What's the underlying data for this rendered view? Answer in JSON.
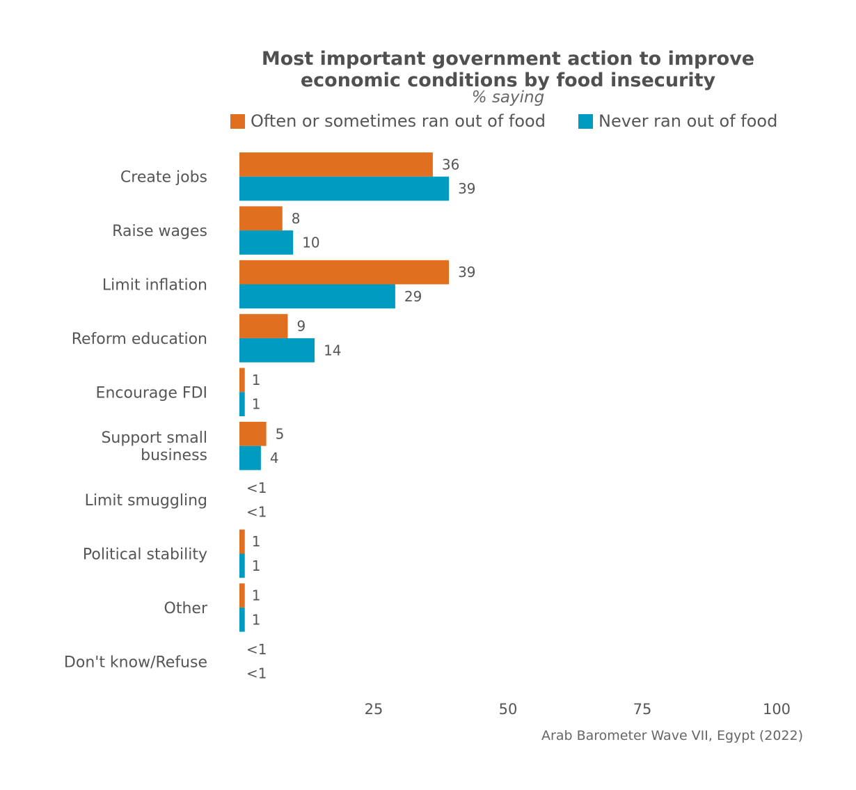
{
  "chart_data": {
    "type": "bar",
    "orientation": "horizontal",
    "title": "Most important government action to improve economic conditions by food insecurity",
    "title_lines": [
      "Most important government action to improve",
      "economic conditions by food insecurity"
    ],
    "subtitle": "% saying",
    "categories": [
      "Create jobs",
      "Raise wages",
      "Limit inflation",
      "Reform education",
      "Encourage FDI",
      "Support small business",
      "Limit smuggling",
      "Political stability",
      "Other",
      "Don't know/Refuse"
    ],
    "category_lines": [
      [
        "Create jobs"
      ],
      [
        "Raise wages"
      ],
      [
        "Limit inflation"
      ],
      [
        "Reform education"
      ],
      [
        "Encourage FDI"
      ],
      [
        "Support small",
        "business"
      ],
      [
        "Limit smuggling"
      ],
      [
        "Political stability"
      ],
      [
        "Other"
      ],
      [
        "Don't know/Refuse"
      ]
    ],
    "series": [
      {
        "name": "Often or sometimes ran out of food",
        "color": "#E06F20",
        "values": [
          36,
          8,
          39,
          9,
          1,
          5,
          0,
          1,
          1,
          0
        ],
        "labels": [
          "36",
          "8",
          "39",
          "9",
          "1",
          "5",
          "<1",
          "1",
          "1",
          "<1"
        ]
      },
      {
        "name": "Never ran out of food",
        "color": "#009BC0",
        "values": [
          39,
          10,
          29,
          14,
          1,
          4,
          0,
          1,
          1,
          0
        ],
        "labels": [
          "39",
          "10",
          "29",
          "14",
          "1",
          "4",
          "<1",
          "1",
          "1",
          "<1"
        ]
      }
    ],
    "xlim": [
      0,
      100
    ],
    "xticks": [
      25,
      50,
      75,
      100
    ],
    "xlabel": "",
    "ylabel": "",
    "grid": false,
    "legend_position": "top",
    "caption": "Arab Barometer Wave VII, Egypt (2022)"
  }
}
